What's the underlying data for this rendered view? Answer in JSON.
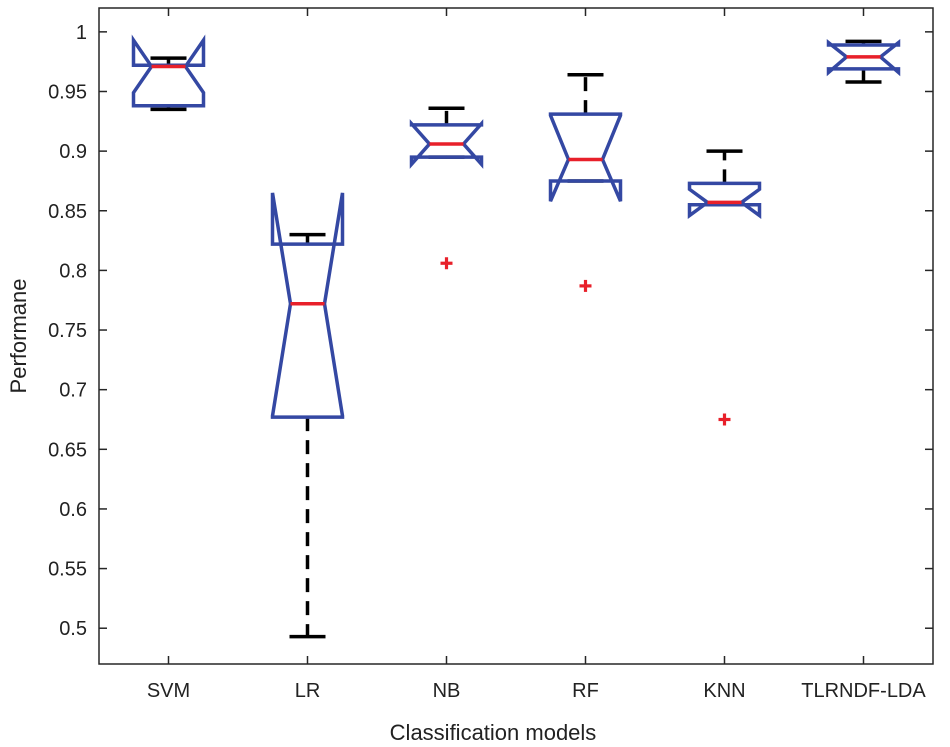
{
  "chart_data": {
    "type": "boxplot",
    "notched": true,
    "xlabel": "Classification models",
    "ylabel": "Performane",
    "ylim": [
      0.47,
      1.02
    ],
    "yticks": [
      0.5,
      0.55,
      0.6,
      0.65,
      0.7,
      0.75,
      0.8,
      0.85,
      0.9,
      0.95,
      1
    ],
    "ytick_labels": [
      "0.5",
      "0.55",
      "0.6",
      "0.65",
      "0.7",
      "0.75",
      "0.8",
      "0.85",
      "0.9",
      "0.95",
      "1"
    ],
    "categories": [
      "SVM",
      "LR",
      "NB",
      "RF",
      "KNN",
      "TLRNDF-LDA"
    ],
    "boxes": [
      {
        "name": "SVM",
        "whisker_low": 0.935,
        "q1": 0.938,
        "notch_low": 0.949,
        "median": 0.971,
        "notch_high": 0.993,
        "q3": 0.972,
        "whisker_high": 0.978,
        "outliers": []
      },
      {
        "name": "LR",
        "whisker_low": 0.493,
        "q1": 0.677,
        "notch_low": 0.678,
        "median": 0.772,
        "notch_high": 0.865,
        "q3": 0.822,
        "whisker_high": 0.83,
        "outliers": []
      },
      {
        "name": "NB",
        "whisker_low": 0.895,
        "q1": 0.895,
        "notch_low": 0.889,
        "median": 0.906,
        "notch_high": 0.923,
        "q3": 0.922,
        "whisker_high": 0.936,
        "outliers": [
          0.806
        ]
      },
      {
        "name": "RF",
        "whisker_low": 0.875,
        "q1": 0.875,
        "notch_low": 0.858,
        "median": 0.893,
        "notch_high": 0.93,
        "q3": 0.931,
        "whisker_high": 0.964,
        "outliers": [
          0.787
        ]
      },
      {
        "name": "KNN",
        "whisker_low": 0.855,
        "q1": 0.855,
        "notch_low": 0.846,
        "median": 0.857,
        "notch_high": 0.868,
        "q3": 0.873,
        "whisker_high": 0.9,
        "outliers": [
          0.675
        ]
      },
      {
        "name": "TLRNDF-LDA",
        "whisker_low": 0.958,
        "q1": 0.969,
        "notch_low": 0.966,
        "median": 0.979,
        "notch_high": 0.991,
        "q3": 0.989,
        "whisker_high": 0.992,
        "outliers": []
      }
    ],
    "grid": false,
    "legend": "none",
    "colors": {
      "box": "#3448a3",
      "median": "#e8202a",
      "whisker": "#000000",
      "outlier": "#e8202a"
    }
  }
}
